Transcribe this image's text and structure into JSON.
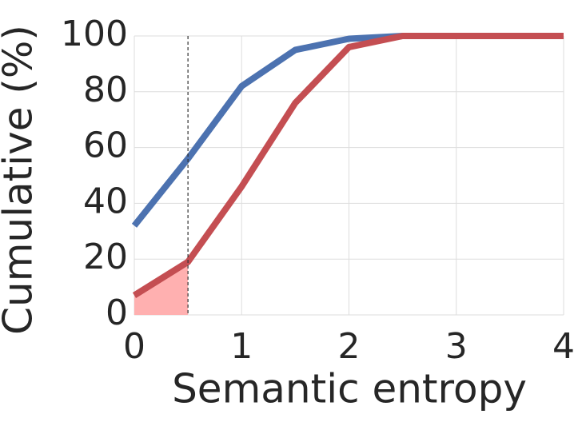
{
  "chart_data": {
    "type": "line",
    "xlabel": "Semantic entropy",
    "ylabel": "Cumulative (%)",
    "x": [
      0,
      0.5,
      1,
      1.5,
      2,
      2.5,
      3,
      3.5,
      4
    ],
    "series": [
      {
        "color": "#4c72b0",
        "values": [
          32,
          56,
          82,
          95,
          99,
          100,
          100,
          100,
          100
        ]
      },
      {
        "color": "#c44e52",
        "values": [
          7,
          19,
          46,
          76,
          96,
          100,
          100,
          100,
          100
        ]
      }
    ],
    "xlim": [
      0,
      4
    ],
    "xticks": [
      0,
      1,
      2,
      3,
      4
    ],
    "ylim": [
      0,
      100
    ],
    "yticks": [
      0,
      20,
      40,
      60,
      80,
      100
    ],
    "grid": true,
    "vline": 0.5,
    "shade_color": "#ffb0b0"
  }
}
